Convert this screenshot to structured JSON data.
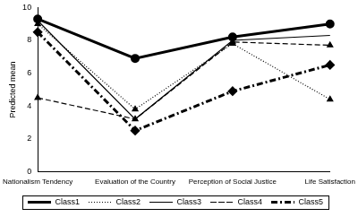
{
  "chart_data": {
    "type": "line",
    "y_label": "Predicted mean",
    "categories": [
      "Nationalism Tendency",
      "Evaluation of the Country",
      "Perception of Social Justice",
      "Life Satisfaction"
    ],
    "series": [
      {
        "name": "Class1",
        "color": "#000000",
        "marker": "circle",
        "line_style": "solid",
        "values": [
          9.3,
          6.9,
          8.2,
          9.0
        ]
      },
      {
        "name": "Class2",
        "color": "#000000",
        "marker": "triangle",
        "line_style": "dotted",
        "values": [
          9.0,
          3.8,
          7.8,
          4.4
        ]
      },
      {
        "name": "Class3",
        "color": "#000000",
        "marker": "none",
        "line_style": "solid",
        "values": [
          9.2,
          3.2,
          8.0,
          8.3
        ]
      },
      {
        "name": "Class4",
        "color": "#000000",
        "marker": "triangle",
        "line_style": "dashed",
        "values": [
          4.5,
          3.2,
          7.9,
          7.7
        ]
      },
      {
        "name": "Class5",
        "color": "#000000",
        "marker": "diamond",
        "line_style": "dashdot",
        "values": [
          8.5,
          2.5,
          4.9,
          6.5
        ]
      }
    ],
    "ylim": [
      0,
      10
    ],
    "yticks": [
      0,
      2,
      4,
      6,
      8,
      10
    ],
    "grid": false,
    "legend": "bottom"
  }
}
